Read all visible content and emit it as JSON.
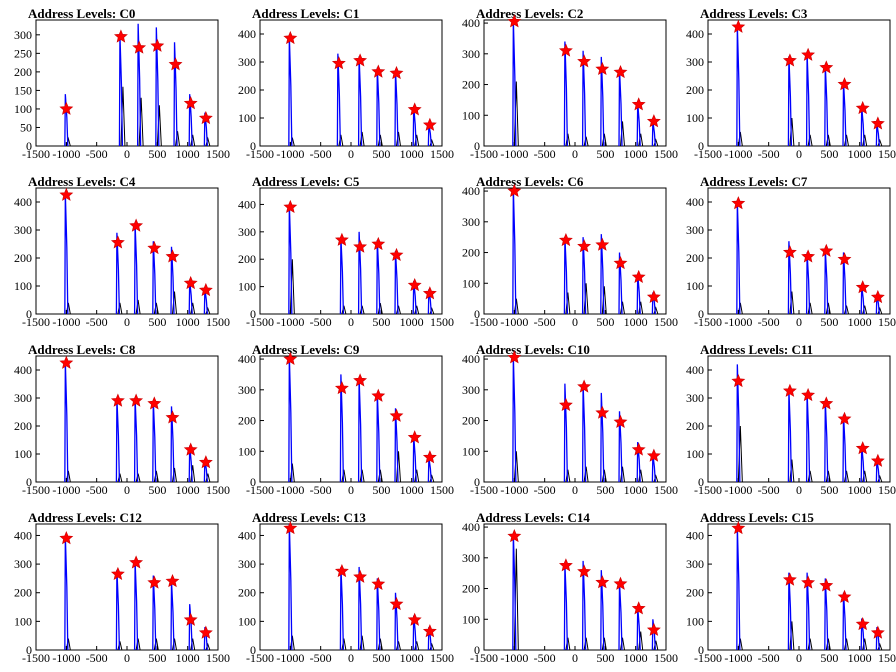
{
  "title_prefix": "Address Levels: ",
  "x_ticks": [
    -1500,
    -1000,
    -500,
    0,
    500,
    1000,
    1500
  ],
  "x_tick_labels": [
    "-1500",
    "-1000",
    "-500",
    "0",
    "500",
    "1000",
    "1500"
  ],
  "chart_data": [
    {
      "type": "bar",
      "title": "Address Levels: C0",
      "xlim": [
        -1500,
        1500
      ],
      "ylim": [
        0,
        340
      ],
      "y_ticks": [
        0,
        50,
        100,
        150,
        200,
        250,
        300
      ],
      "peaks": {
        "x": [
          -1000,
          -100,
          200,
          500,
          800,
          1050,
          1300
        ],
        "blue": [
          140,
          300,
          330,
          320,
          280,
          140,
          90
        ],
        "black": [
          20,
          160,
          130,
          110,
          40,
          30,
          20
        ]
      },
      "markers": {
        "x": [
          -1000,
          -100,
          200,
          500,
          800,
          1050,
          1300
        ],
        "y": [
          100,
          295,
          265,
          270,
          220,
          115,
          75
        ]
      }
    },
    {
      "type": "bar",
      "title": "Address Levels: C1",
      "xlim": [
        -1500,
        1500
      ],
      "ylim": [
        0,
        450
      ],
      "y_ticks": [
        0,
        100,
        200,
        300,
        400
      ],
      "peaks": {
        "x": [
          -1000,
          -200,
          150,
          450,
          750,
          1050,
          1300
        ],
        "blue": [
          390,
          330,
          320,
          280,
          270,
          140,
          80
        ],
        "black": [
          30,
          40,
          50,
          40,
          50,
          40,
          20
        ]
      },
      "markers": {
        "x": [
          -1000,
          -200,
          150,
          450,
          750,
          1050,
          1300
        ],
        "y": [
          385,
          295,
          305,
          265,
          260,
          130,
          75
        ]
      }
    },
    {
      "type": "bar",
      "title": "Address Levels: C2",
      "xlim": [
        -1500,
        1500
      ],
      "ylim": [
        0,
        410
      ],
      "y_ticks": [
        0,
        100,
        200,
        300,
        400
      ],
      "peaks": {
        "x": [
          -1000,
          -150,
          150,
          450,
          750,
          1050,
          1300
        ],
        "blue": [
          410,
          340,
          310,
          290,
          250,
          140,
          80
        ],
        "black": [
          210,
          40,
          30,
          40,
          80,
          40,
          20
        ]
      },
      "markers": {
        "x": [
          -1000,
          -150,
          150,
          450,
          750,
          1050,
          1300
        ],
        "y": [
          405,
          310,
          275,
          250,
          240,
          135,
          80
        ]
      }
    },
    {
      "type": "bar",
      "title": "Address Levels: C3",
      "xlim": [
        -1500,
        1500
      ],
      "ylim": [
        0,
        450
      ],
      "y_ticks": [
        0,
        100,
        200,
        300,
        400
      ],
      "peaks": {
        "x": [
          -1000,
          -150,
          150,
          450,
          750,
          1050,
          1300
        ],
        "blue": [
          430,
          320,
          330,
          290,
          230,
          140,
          80
        ],
        "black": [
          50,
          100,
          40,
          40,
          40,
          40,
          20
        ]
      },
      "markers": {
        "x": [
          -1000,
          -150,
          150,
          450,
          750,
          1050,
          1300
        ],
        "y": [
          425,
          305,
          325,
          280,
          220,
          135,
          80
        ]
      }
    },
    {
      "type": "bar",
      "title": "Address Levels: C4",
      "xlim": [
        -1500,
        1500
      ],
      "ylim": [
        0,
        450
      ],
      "y_ticks": [
        0,
        100,
        200,
        300,
        400
      ],
      "peaks": {
        "x": [
          -1000,
          -150,
          150,
          450,
          750,
          1050,
          1300
        ],
        "blue": [
          430,
          290,
          320,
          260,
          240,
          120,
          90
        ],
        "black": [
          40,
          40,
          50,
          40,
          80,
          40,
          20
        ]
      },
      "markers": {
        "x": [
          -1000,
          -150,
          150,
          450,
          750,
          1050,
          1300
        ],
        "y": [
          425,
          255,
          315,
          235,
          205,
          110,
          85
        ]
      }
    },
    {
      "type": "bar",
      "title": "Address Levels: C5",
      "xlim": [
        -1500,
        1500
      ],
      "ylim": [
        0,
        460
      ],
      "y_ticks": [
        0,
        100,
        200,
        300,
        400
      ],
      "peaks": {
        "x": [
          -1000,
          -150,
          150,
          450,
          750,
          1050,
          1300
        ],
        "blue": [
          400,
          280,
          300,
          270,
          230,
          120,
          90
        ],
        "black": [
          200,
          30,
          30,
          40,
          30,
          30,
          20
        ]
      },
      "markers": {
        "x": [
          -1000,
          -150,
          150,
          450,
          750,
          1050,
          1300
        ],
        "y": [
          390,
          270,
          245,
          255,
          215,
          105,
          75
        ]
      }
    },
    {
      "type": "bar",
      "title": "Address Levels: C6",
      "xlim": [
        -1500,
        1500
      ],
      "ylim": [
        0,
        410
      ],
      "y_ticks": [
        0,
        100,
        200,
        300,
        400
      ],
      "peaks": {
        "x": [
          -1000,
          -150,
          150,
          450,
          750,
          1050,
          1300
        ],
        "blue": [
          410,
          250,
          250,
          260,
          200,
          130,
          70
        ],
        "black": [
          50,
          70,
          100,
          90,
          40,
          40,
          20
        ]
      },
      "markers": {
        "x": [
          -1000,
          -150,
          150,
          450,
          750,
          1050,
          1300
        ],
        "y": [
          400,
          240,
          220,
          225,
          165,
          120,
          55
        ]
      }
    },
    {
      "type": "bar",
      "title": "Address Levels: C7",
      "xlim": [
        -1500,
        1500
      ],
      "ylim": [
        0,
        450
      ],
      "y_ticks": [
        0,
        100,
        200,
        300,
        400
      ],
      "peaks": {
        "x": [
          -1000,
          -150,
          150,
          450,
          750,
          1050,
          1300
        ],
        "blue": [
          400,
          260,
          220,
          230,
          220,
          100,
          70
        ],
        "black": [
          40,
          80,
          40,
          40,
          30,
          30,
          20
        ]
      },
      "markers": {
        "x": [
          -1000,
          -150,
          150,
          450,
          750,
          1050,
          1300
        ],
        "y": [
          395,
          220,
          205,
          225,
          195,
          95,
          60
        ]
      }
    },
    {
      "type": "bar",
      "title": "Address Levels: C8",
      "xlim": [
        -1500,
        1500
      ],
      "ylim": [
        0,
        450
      ],
      "y_ticks": [
        0,
        100,
        200,
        300,
        400
      ],
      "peaks": {
        "x": [
          -1000,
          -150,
          150,
          450,
          750,
          1050,
          1300
        ],
        "blue": [
          430,
          300,
          300,
          290,
          270,
          130,
          80
        ],
        "black": [
          40,
          30,
          30,
          40,
          50,
          60,
          30
        ]
      },
      "markers": {
        "x": [
          -1000,
          -150,
          150,
          450,
          750,
          1050,
          1300
        ],
        "y": [
          425,
          290,
          290,
          280,
          230,
          115,
          70
        ]
      }
    },
    {
      "type": "bar",
      "title": "Address Levels: C9",
      "xlim": [
        -1500,
        1500
      ],
      "ylim": [
        0,
        410
      ],
      "y_ticks": [
        0,
        100,
        200,
        300,
        400
      ],
      "peaks": {
        "x": [
          -1000,
          -150,
          150,
          450,
          750,
          1050,
          1300
        ],
        "blue": [
          410,
          350,
          340,
          290,
          240,
          150,
          80
        ],
        "black": [
          60,
          40,
          40,
          40,
          100,
          40,
          20
        ]
      },
      "markers": {
        "x": [
          -1000,
          -150,
          150,
          450,
          750,
          1050,
          1300
        ],
        "y": [
          400,
          305,
          330,
          280,
          215,
          145,
          80
        ]
      }
    },
    {
      "type": "bar",
      "title": "Address Levels: C10",
      "xlim": [
        -1500,
        1500
      ],
      "ylim": [
        0,
        410
      ],
      "y_ticks": [
        0,
        100,
        200,
        300,
        400
      ],
      "peaks": {
        "x": [
          -1000,
          -150,
          150,
          450,
          750,
          1050,
          1300
        ],
        "blue": [
          410,
          320,
          320,
          290,
          230,
          130,
          90
        ],
        "black": [
          100,
          40,
          50,
          40,
          50,
          40,
          20
        ]
      },
      "markers": {
        "x": [
          -1000,
          -150,
          150,
          450,
          750,
          1050,
          1300
        ],
        "y": [
          405,
          250,
          310,
          225,
          195,
          105,
          85
        ]
      }
    },
    {
      "type": "bar",
      "title": "Address Levels: C11",
      "xlim": [
        -1500,
        1500
      ],
      "ylim": [
        0,
        450
      ],
      "y_ticks": [
        0,
        100,
        200,
        300,
        400
      ],
      "peaks": {
        "x": [
          -1000,
          -150,
          150,
          450,
          750,
          1050,
          1300
        ],
        "blue": [
          420,
          330,
          320,
          290,
          240,
          130,
          80
        ],
        "black": [
          200,
          80,
          40,
          40,
          40,
          40,
          20
        ]
      },
      "markers": {
        "x": [
          -1000,
          -150,
          150,
          450,
          750,
          1050,
          1300
        ],
        "y": [
          360,
          325,
          310,
          280,
          225,
          120,
          75
        ]
      }
    },
    {
      "type": "bar",
      "title": "Address Levels: C12",
      "xlim": [
        -1500,
        1500
      ],
      "ylim": [
        0,
        440
      ],
      "y_ticks": [
        0,
        100,
        200,
        300,
        400
      ],
      "peaks": {
        "x": [
          -1000,
          -150,
          150,
          450,
          750,
          1050,
          1300
        ],
        "blue": [
          400,
          280,
          310,
          260,
          240,
          160,
          80
        ],
        "black": [
          40,
          30,
          40,
          40,
          40,
          40,
          20
        ]
      },
      "markers": {
        "x": [
          -1000,
          -150,
          150,
          450,
          750,
          1050,
          1300
        ],
        "y": [
          390,
          265,
          305,
          235,
          240,
          105,
          60
        ]
      }
    },
    {
      "type": "bar",
      "title": "Address Levels: C13",
      "xlim": [
        -1500,
        1500
      ],
      "ylim": [
        0,
        440
      ],
      "y_ticks": [
        0,
        100,
        200,
        300,
        400
      ],
      "peaks": {
        "x": [
          -1000,
          -150,
          150,
          450,
          750,
          1050,
          1300
        ],
        "blue": [
          440,
          290,
          290,
          250,
          200,
          120,
          80
        ],
        "black": [
          50,
          40,
          50,
          40,
          30,
          30,
          20
        ]
      },
      "markers": {
        "x": [
          -1000,
          -150,
          150,
          450,
          750,
          1050,
          1300
        ],
        "y": [
          425,
          275,
          255,
          230,
          160,
          105,
          65
        ]
      }
    },
    {
      "type": "bar",
      "title": "Address Levels: C14",
      "xlim": [
        -1500,
        1500
      ],
      "ylim": [
        0,
        410
      ],
      "y_ticks": [
        0,
        100,
        200,
        300,
        400
      ],
      "peaks": {
        "x": [
          -1000,
          -150,
          150,
          450,
          750,
          1050,
          1300
        ],
        "blue": [
          380,
          280,
          290,
          260,
          220,
          140,
          100
        ],
        "black": [
          330,
          40,
          40,
          40,
          40,
          60,
          30
        ]
      },
      "markers": {
        "x": [
          -1000,
          -150,
          150,
          450,
          750,
          1050,
          1300
        ],
        "y": [
          370,
          275,
          255,
          220,
          215,
          135,
          65
        ]
      }
    },
    {
      "type": "bar",
      "title": "Address Levels: C15",
      "xlim": [
        -1500,
        1500
      ],
      "ylim": [
        0,
        440
      ],
      "y_ticks": [
        0,
        100,
        200,
        300,
        400
      ],
      "peaks": {
        "x": [
          -1000,
          -150,
          150,
          450,
          750,
          1050,
          1300
        ],
        "blue": [
          430,
          270,
          270,
          250,
          200,
          110,
          80
        ],
        "black": [
          40,
          100,
          40,
          40,
          40,
          40,
          20
        ]
      },
      "markers": {
        "x": [
          -1000,
          -150,
          150,
          450,
          750,
          1050,
          1300
        ],
        "y": [
          425,
          245,
          235,
          225,
          185,
          90,
          60
        ]
      }
    }
  ],
  "colors": {
    "histogram": "#0000ff",
    "overlay": "#000000",
    "marker": "#ff0000",
    "marker_edge": "#cc0000"
  }
}
